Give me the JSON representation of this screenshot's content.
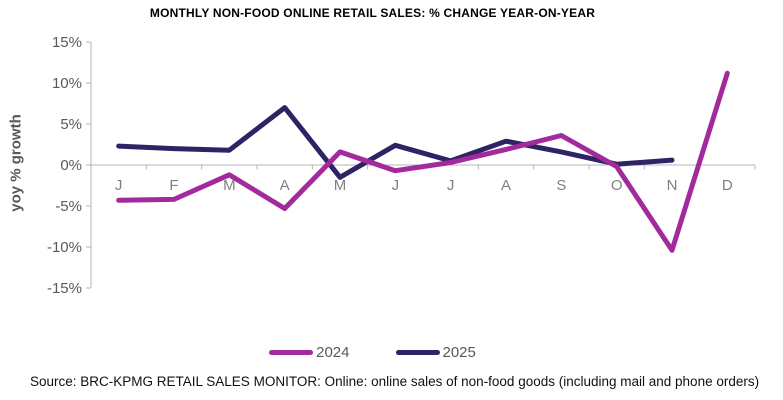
{
  "source_note": "Source: BRC-KPMG RETAIL SALES MONITOR: Online: online sales of non-food goods (including mail and phone orders)",
  "chart_data": {
    "type": "line",
    "title": "MONTHLY NON-FOOD ONLINE RETAIL SALES: % CHANGE YEAR-ON-YEAR",
    "xlabel": "",
    "ylabel": "yoy % growth",
    "categories": [
      "J",
      "F",
      "M",
      "A",
      "M",
      "J",
      "J",
      "A",
      "S",
      "O",
      "N",
      "D"
    ],
    "y_ticks": [
      15,
      10,
      5,
      0,
      -5,
      -10,
      -15
    ],
    "y_tick_labels": [
      "15%",
      "10%",
      "5%",
      "0%",
      "-5%",
      "-10%",
      "-15%"
    ],
    "ylim": [
      -15,
      15
    ],
    "grid": false,
    "x_axis_position": "zero",
    "legend_position": "bottom",
    "series": [
      {
        "name": "2024",
        "color": "#a32a9d",
        "values": [
          -4.3,
          -4.2,
          -1.2,
          -5.3,
          1.6,
          -0.7,
          0.3,
          1.9,
          3.6,
          -0.2,
          -10.4,
          11.2
        ]
      },
      {
        "name": "2025",
        "color": "#2d2365",
        "values": [
          2.3,
          2.0,
          1.8,
          7.0,
          -1.5,
          2.4,
          0.5,
          2.9,
          1.6,
          0.1,
          0.6,
          null
        ]
      }
    ],
    "colors": {
      "axis_line": "#b5b5b5",
      "y_tick_label": "#595959",
      "month_label": "#808080",
      "title": "#000000",
      "legend_text": "#595959"
    }
  }
}
